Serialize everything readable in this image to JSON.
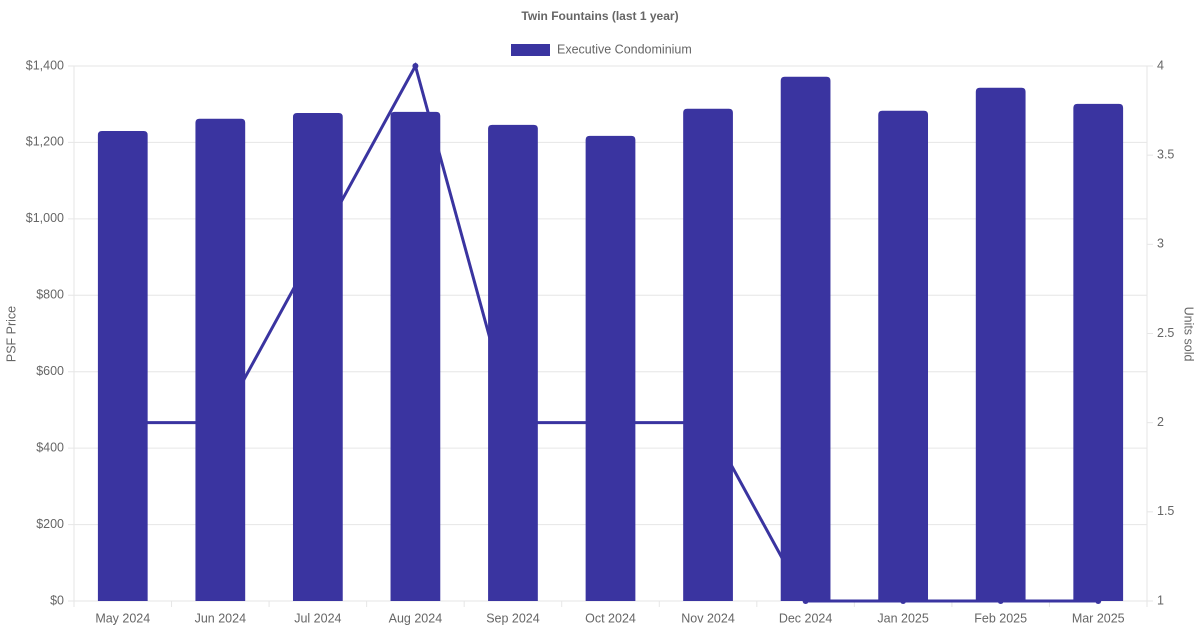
{
  "chart_data": {
    "type": "bar",
    "title": "Twin Fountains (last 1 year)",
    "y_label": "PSF Price",
    "y2_label": "Units sold",
    "categories": [
      "May 2024",
      "Jun 2024",
      "Jul 2024",
      "Aug 2024",
      "Sep 2024",
      "Oct 2024",
      "Nov 2024",
      "Dec 2024",
      "Jan 2025",
      "Feb 2025",
      "Mar 2025"
    ],
    "series": [
      {
        "name": "Executive Condominium",
        "color": "#3a34a0",
        "values": [
          1230,
          1262,
          1277,
          1280,
          1246,
          1217,
          1288,
          1372,
          1283,
          1343,
          1301
        ]
      },
      {
        "type": "line",
        "color": "#3a34a0",
        "axis": "y2",
        "values": [
          2,
          2,
          3,
          4,
          2,
          2,
          2,
          1,
          1,
          1,
          1
        ]
      }
    ],
    "ylim": [
      0,
      1400
    ],
    "yticks": [
      {
        "value": 0,
        "label": "$0"
      },
      {
        "value": 200,
        "label": "$200"
      },
      {
        "value": 400,
        "label": "$400"
      },
      {
        "value": 600,
        "label": "$600"
      },
      {
        "value": 800,
        "label": "$800"
      },
      {
        "value": 1000,
        "label": "$1,000"
      },
      {
        "value": 1200,
        "label": "$1,200"
      },
      {
        "value": 1400,
        "label": "$1,400"
      }
    ],
    "y2lim": [
      1,
      4
    ],
    "y2ticks": [
      1,
      1.5,
      2,
      2.5,
      3,
      3.5,
      4
    ],
    "grid": true,
    "legend": "top"
  }
}
